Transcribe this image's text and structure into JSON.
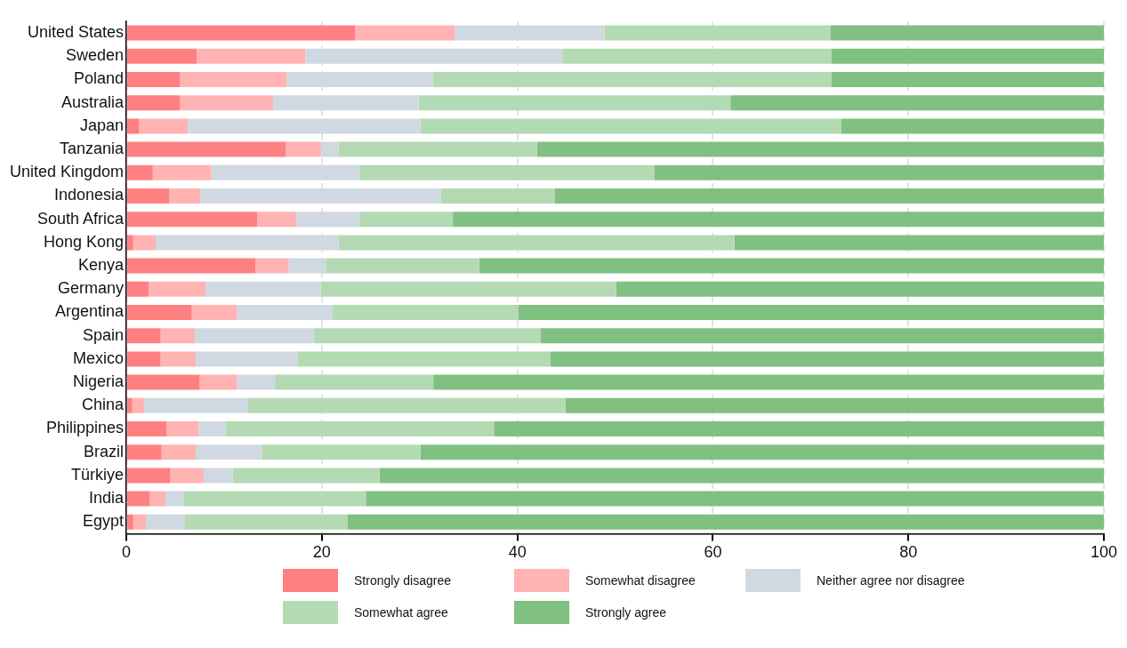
{
  "chart_data": {
    "type": "bar",
    "orientation": "horizontal",
    "stacked": true,
    "categories": [
      "United States",
      "Sweden",
      "Poland",
      "Australia",
      "Japan",
      "Tanzania",
      "United Kingdom",
      "Indonesia",
      "South Africa",
      "Hong Kong",
      "Kenya",
      "Germany",
      "Argentina",
      "Spain",
      "Mexico",
      "Nigeria",
      "China",
      "Philippines",
      "Brazil",
      "Türkiye",
      "India",
      "Egypt"
    ],
    "series": [
      {
        "name": "Strongly disagree",
        "color": "#ff8080",
        "values": [
          23.4,
          7.2,
          5.5,
          5.5,
          1.3,
          16.3,
          2.7,
          4.4,
          13.4,
          0.7,
          13.2,
          2.3,
          6.7,
          3.5,
          3.5,
          7.5,
          0.6,
          4.1,
          3.6,
          4.5,
          2.4,
          0.7
        ]
      },
      {
        "name": "Somewhat disagree",
        "color": "#ffb3b3",
        "values": [
          10.2,
          11.1,
          10.9,
          9.5,
          5.0,
          3.6,
          6.0,
          3.2,
          4.0,
          2.3,
          3.4,
          5.8,
          4.6,
          3.5,
          3.6,
          3.8,
          1.2,
          3.3,
          3.5,
          3.4,
          1.6,
          1.3
        ]
      },
      {
        "name": "Neither agree nor disagree",
        "color": "#d0d9e2",
        "values": [
          15.3,
          26.3,
          15.0,
          14.9,
          23.8,
          1.8,
          15.1,
          24.6,
          6.4,
          18.7,
          3.8,
          11.8,
          9.8,
          12.2,
          10.4,
          3.9,
          10.6,
          2.8,
          6.8,
          3.0,
          1.9,
          4.0
        ]
      },
      {
        "name": "Somewhat agree",
        "color": "#b3dab3",
        "values": [
          23.1,
          27.5,
          40.7,
          31.9,
          43.0,
          20.3,
          30.2,
          11.6,
          9.6,
          40.5,
          15.7,
          30.2,
          19.0,
          23.2,
          25.9,
          16.2,
          32.5,
          27.4,
          16.2,
          15.0,
          18.6,
          16.6
        ]
      },
      {
        "name": "Strongly agree",
        "color": "#80c080",
        "values": [
          28.0,
          27.9,
          27.9,
          38.2,
          26.9,
          58.0,
          46.0,
          56.2,
          66.6,
          37.8,
          63.9,
          49.9,
          59.9,
          57.6,
          56.6,
          68.6,
          55.1,
          62.4,
          69.9,
          74.1,
          75.5,
          77.4
        ]
      }
    ],
    "xlim": [
      0,
      100
    ],
    "xticks": [
      0,
      20,
      40,
      60,
      80,
      100
    ],
    "grid": "x",
    "legend": "bottom"
  }
}
